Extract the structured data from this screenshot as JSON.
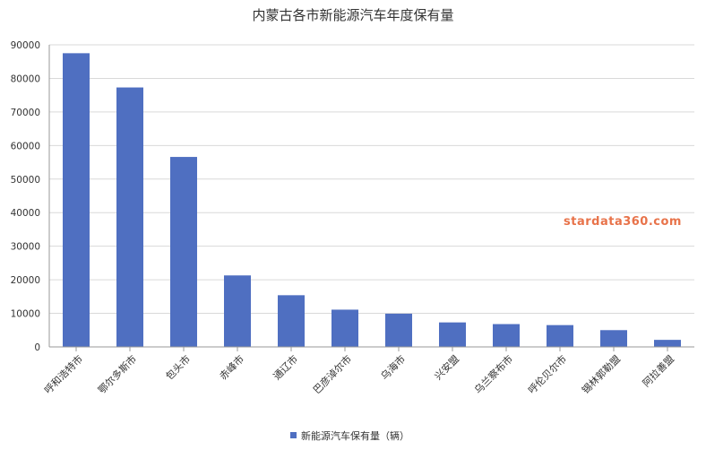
{
  "watermark": "stardata360.com",
  "chart_data": {
    "type": "bar",
    "title": "内蒙古各市新能源汽车年度保有量",
    "xlabel": "",
    "ylabel": "",
    "ylim": [
      0,
      90000
    ],
    "yticks": [
      0,
      10000,
      20000,
      30000,
      40000,
      50000,
      60000,
      70000,
      80000,
      90000
    ],
    "grid": true,
    "legend_position": "bottom",
    "categories": [
      "呼和浩特市",
      "鄂尔多斯市",
      "包头市",
      "赤峰市",
      "通辽市",
      "巴彦淖尔市",
      "乌海市",
      "兴安盟",
      "乌兰察布市",
      "呼伦贝尔市",
      "锡林郭勒盟",
      "阿拉善盟"
    ],
    "series": [
      {
        "name": "新能源汽车保有量（辆）",
        "color": "#4f6fc1",
        "values": [
          87500,
          77300,
          56600,
          21300,
          15400,
          11100,
          9900,
          7300,
          6800,
          6500,
          5000,
          2100
        ]
      }
    ]
  }
}
